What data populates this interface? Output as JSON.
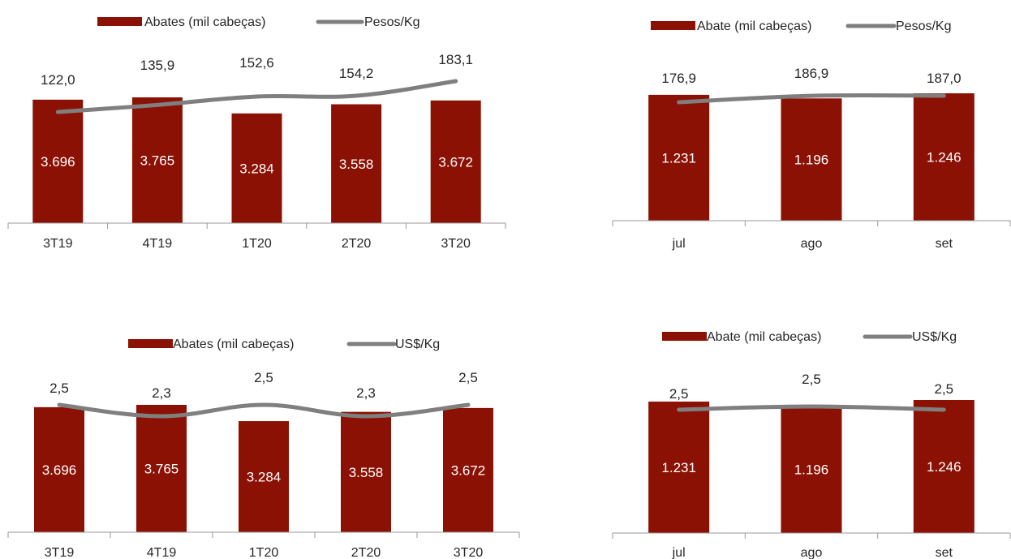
{
  "colors": {
    "bar": "#8B1104",
    "line": "#7F7F7F",
    "axis": "#999999",
    "text": "#262626",
    "bar_text": "#FFFFFF"
  },
  "chart_data": [
    {
      "type": "bar",
      "categories": [
        "3T19",
        "4T19",
        "1T20",
        "2T20",
        "3T20"
      ],
      "series": [
        {
          "name": "Abates (mil cabeças)",
          "type": "bar",
          "values": [
            3696,
            3765,
            3284,
            3558,
            3672
          ],
          "labels": [
            "3.696",
            "3.765",
            "3.284",
            "3.558",
            "3.672"
          ]
        },
        {
          "name": "Pesos/Kg",
          "type": "line",
          "values": [
            122.0,
            135.9,
            152.6,
            154.2,
            183.1
          ],
          "labels": [
            "122,0",
            "135,9",
            "152,6",
            "154,2",
            "183,1"
          ]
        }
      ],
      "legend": "top"
    },
    {
      "type": "bar",
      "categories": [
        "jul",
        "ago",
        "set"
      ],
      "series": [
        {
          "name": "Abate (mil cabeças)",
          "type": "bar",
          "values": [
            1231,
            1196,
            1246
          ],
          "labels": [
            "1.231",
            "1.196",
            "1.246"
          ]
        },
        {
          "name": "Pesos/Kg",
          "type": "line",
          "values": [
            176.9,
            186.9,
            187.0
          ],
          "labels": [
            "176,9",
            "186,9",
            "187,0"
          ]
        }
      ],
      "legend": "top"
    },
    {
      "type": "bar",
      "categories": [
        "3T19",
        "4T19",
        "1T20",
        "2T20",
        "3T20"
      ],
      "series": [
        {
          "name": "Abates (mil cabeças)",
          "type": "bar",
          "values": [
            3696,
            3765,
            3284,
            3558,
            3672
          ],
          "labels": [
            "3.696",
            "3.765",
            "3.284",
            "3.558",
            "3.672"
          ]
        },
        {
          "name": "US$/Kg",
          "type": "line",
          "values": [
            2.5,
            2.3,
            2.5,
            2.3,
            2.5
          ],
          "labels": [
            "2,5",
            "2,3",
            "2,5",
            "2,3",
            "2,5"
          ]
        }
      ],
      "legend": "top"
    },
    {
      "type": "bar",
      "categories": [
        "jul",
        "ago",
        "set"
      ],
      "series": [
        {
          "name": "Abate (mil cabeças)",
          "type": "bar",
          "values": [
            1231,
            1196,
            1246
          ],
          "labels": [
            "1.231",
            "1.196",
            "1.246"
          ]
        },
        {
          "name": "US$/Kg",
          "type": "line",
          "values": [
            2.5,
            2.5,
            2.5
          ],
          "labels": [
            "2,5",
            "2,5",
            "2,5"
          ]
        }
      ],
      "legend": "top"
    }
  ]
}
